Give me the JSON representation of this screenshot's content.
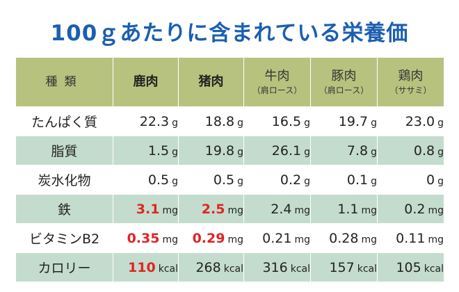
{
  "title": "100ｇあたりに含まれている栄養価",
  "header": [
    {
      "main": "種類",
      "sub": ""
    },
    {
      "main": "鹿肉",
      "sub": ""
    },
    {
      "main": "猪肉",
      "sub": ""
    },
    {
      "main": "牛肉",
      "sub": "（肩ロース）"
    },
    {
      "main": "豚肉",
      "sub": "（肩ロース）"
    },
    {
      "main": "鶏肉",
      "sub": "（ササミ）"
    }
  ],
  "rows": [
    {
      "label": "たんぱく質",
      "cells": [
        {
          "num": "22.3",
          "unit": "g",
          "hl": false
        },
        {
          "num": "18.8",
          "unit": "g",
          "hl": false
        },
        {
          "num": "16.5",
          "unit": "g",
          "hl": false
        },
        {
          "num": "19.7",
          "unit": "g",
          "hl": false
        },
        {
          "num": "23.0",
          "unit": "g",
          "hl": false
        }
      ]
    },
    {
      "label": "脂質",
      "cells": [
        {
          "num": "1.5",
          "unit": "g",
          "hl": false
        },
        {
          "num": "19.8",
          "unit": "g",
          "hl": false
        },
        {
          "num": "26.1",
          "unit": "g",
          "hl": false
        },
        {
          "num": "7.8",
          "unit": "g",
          "hl": false
        },
        {
          "num": "0.8",
          "unit": "g",
          "hl": false
        }
      ]
    },
    {
      "label": "炭水化物",
      "cells": [
        {
          "num": "0.5",
          "unit": "g",
          "hl": false
        },
        {
          "num": "0.5",
          "unit": "g",
          "hl": false
        },
        {
          "num": "0.2",
          "unit": "g",
          "hl": false
        },
        {
          "num": "0.1",
          "unit": "g",
          "hl": false
        },
        {
          "num": "0",
          "unit": "g",
          "hl": false
        }
      ]
    },
    {
      "label": "鉄",
      "cells": [
        {
          "num": "3.1",
          "unit": "mg",
          "hl": true
        },
        {
          "num": "2.5",
          "unit": "mg",
          "hl": true
        },
        {
          "num": "2.4",
          "unit": "mg",
          "hl": false
        },
        {
          "num": "1.1",
          "unit": "mg",
          "hl": false
        },
        {
          "num": "0.2",
          "unit": "mg",
          "hl": false
        }
      ]
    },
    {
      "label": "ビタミンB2",
      "cells": [
        {
          "num": "0.35",
          "unit": "mg",
          "hl": true
        },
        {
          "num": "0.29",
          "unit": "mg",
          "hl": true
        },
        {
          "num": "0.21",
          "unit": "mg",
          "hl": false
        },
        {
          "num": "0.28",
          "unit": "mg",
          "hl": false
        },
        {
          "num": "0.11",
          "unit": "mg",
          "hl": false
        }
      ]
    },
    {
      "label": "カロリー",
      "cells": [
        {
          "num": "110",
          "unit": "kcal",
          "hl": true
        },
        {
          "num": "268",
          "unit": "kcal",
          "hl": false
        },
        {
          "num": "316",
          "unit": "kcal",
          "hl": false
        },
        {
          "num": "157",
          "unit": "kcal",
          "hl": false
        },
        {
          "num": "105",
          "unit": "kcal",
          "hl": false
        }
      ]
    }
  ],
  "colors": {
    "title": "#1b5fb0",
    "header_bg": "#b8c27f",
    "stripe_bg": "#c4dccd",
    "highlight": "#e02424"
  }
}
